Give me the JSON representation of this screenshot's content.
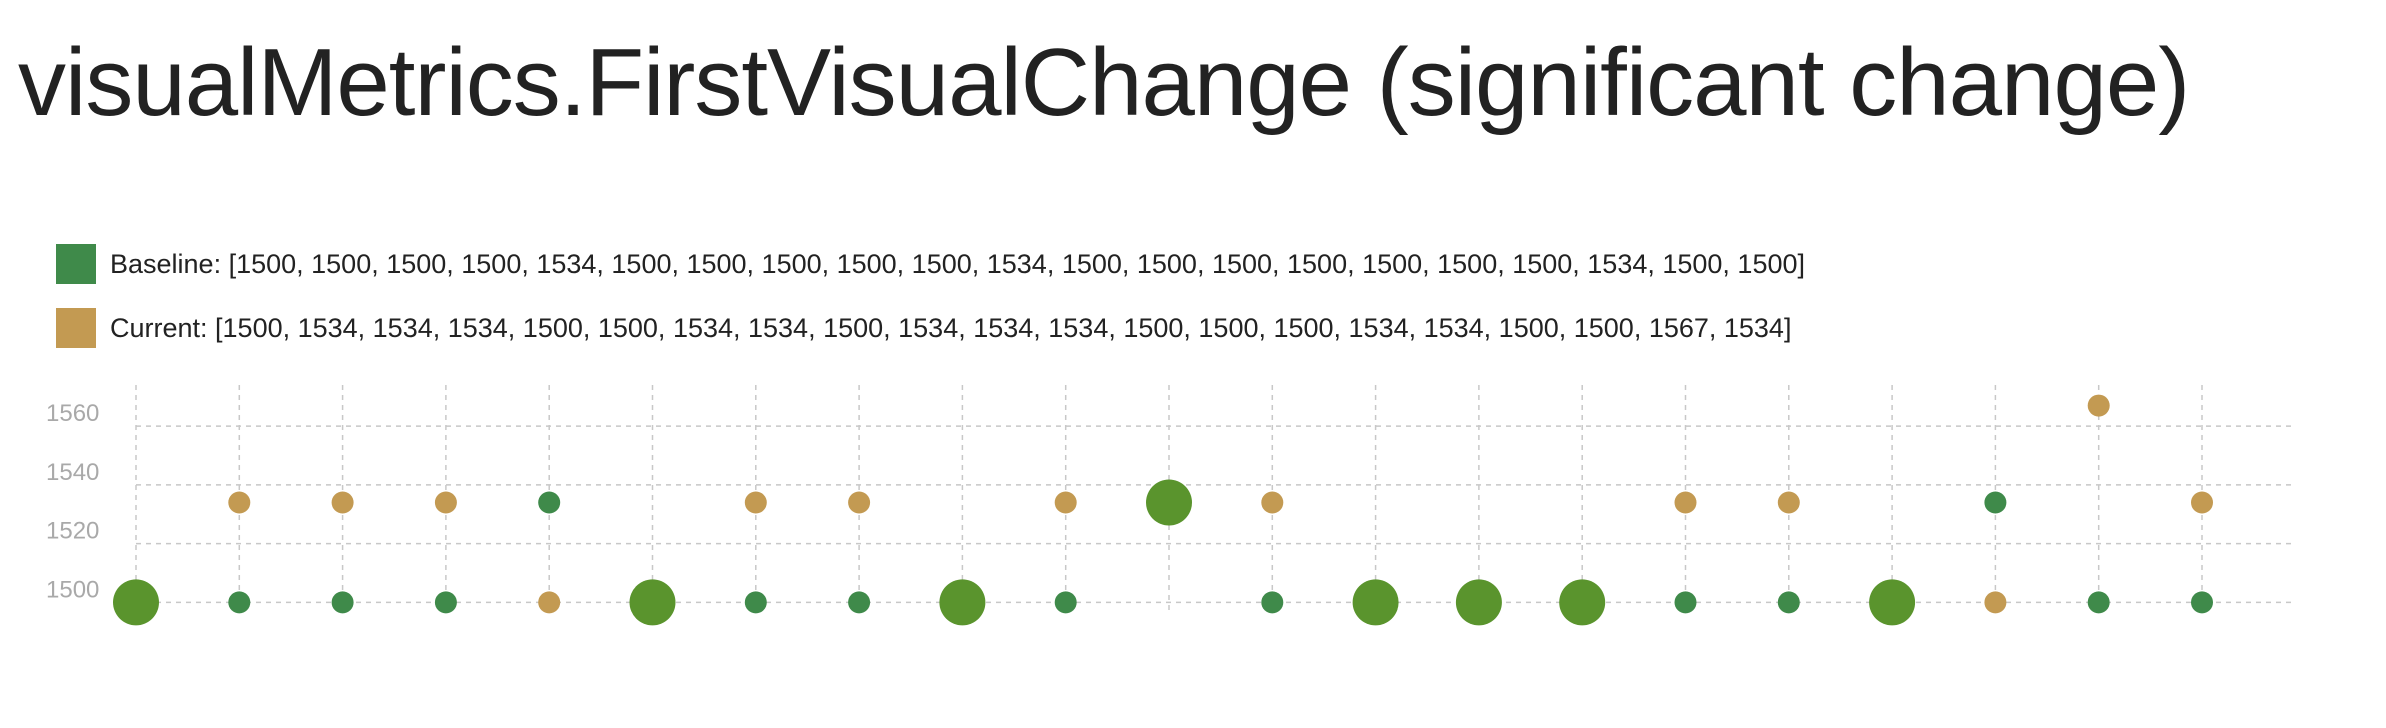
{
  "chart_data": {
    "type": "scatter",
    "title": "visualMetrics.FirstVisualChange (significant change)",
    "xlabel": "",
    "ylabel": "",
    "ylim": [
      1494,
      1574
    ],
    "yticks": [
      1500,
      1520,
      1540,
      1560
    ],
    "grid": true,
    "legend_position": "top-left",
    "series": [
      {
        "legend_label": "Baseline: [1500, 1500, 1500, 1500, 1534, 1500, 1500, 1500, 1500, 1500, 1534, 1500, 1500, 1500, 1500, 1500, 1500, 1500, 1534, 1500, 1500]",
        "color": "#3f8a4a",
        "values": [
          1500,
          1500,
          1500,
          1500,
          1534,
          1500,
          1500,
          1500,
          1500,
          1500,
          1534,
          1500,
          1500,
          1500,
          1500,
          1500,
          1500,
          1500,
          1534,
          1500,
          1500
        ]
      },
      {
        "legend_label": "Current: [1500, 1534, 1534, 1534, 1500, 1500, 1534, 1534, 1500, 1534, 1534, 1534, 1500, 1500, 1500, 1534, 1534, 1500, 1500, 1567, 1534]",
        "color": "#c39a52",
        "values": [
          1500,
          1534,
          1534,
          1534,
          1500,
          1500,
          1534,
          1534,
          1500,
          1534,
          1534,
          1534,
          1500,
          1500,
          1500,
          1534,
          1534,
          1500,
          1500,
          1567,
          1534
        ]
      }
    ],
    "overlap_color": "#5a942d"
  }
}
